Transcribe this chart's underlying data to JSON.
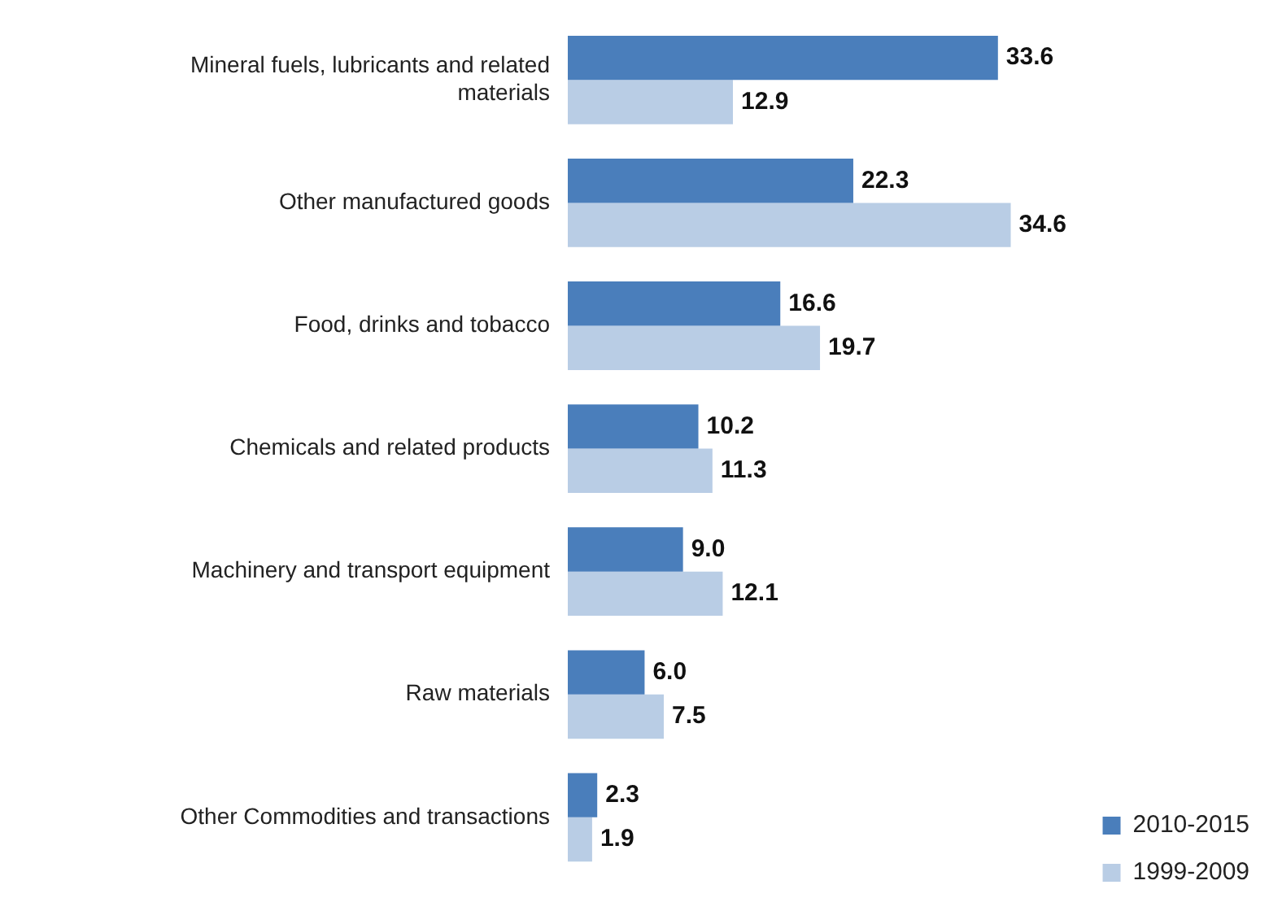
{
  "chart_data": {
    "type": "bar",
    "orientation": "horizontal",
    "categories": [
      "Mineral fuels, lubricants and related materials",
      "Other manufactured goods",
      "Food, drinks and tobacco",
      "Chemicals and related products",
      "Machinery and transport equipment",
      "Raw materials",
      "Other Commodities and transactions"
    ],
    "series": [
      {
        "name": "2010-2015",
        "color": "#4a7ebb",
        "values": [
          33.6,
          22.3,
          16.6,
          10.2,
          9,
          6,
          2.3
        ],
        "value_labels": [
          "33.6",
          "22.3",
          "16.6",
          "10.2",
          "9.0",
          "6.0",
          "2.3"
        ]
      },
      {
        "name": "1999-2009",
        "color": "#b9cde5",
        "values": [
          12.9,
          34.6,
          19.7,
          11.3,
          12.1,
          7.5,
          1.9
        ],
        "value_labels": [
          "12.9",
          "34.6",
          "19.7",
          "11.3",
          "12.1",
          "7.5",
          "1.9"
        ]
      }
    ],
    "legend": "bottom right"
  }
}
